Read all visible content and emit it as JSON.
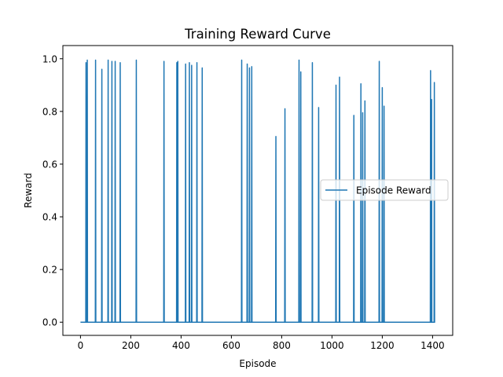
{
  "chart_data": {
    "type": "line",
    "title": "Training Reward Curve",
    "xlabel": "Episode",
    "ylabel": "Reward",
    "xlim": [
      -70,
      1480
    ],
    "ylim": [
      -0.05,
      1.05
    ],
    "x_ticks": [
      0,
      200,
      400,
      600,
      800,
      1000,
      1200,
      1400
    ],
    "y_ticks": [
      0.0,
      0.2,
      0.4,
      0.6,
      0.8,
      1.0
    ],
    "x_tick_labels": [
      "0",
      "200",
      "400",
      "600",
      "800",
      "1000",
      "1200",
      "1400"
    ],
    "y_tick_labels": [
      "0.0",
      "0.2",
      "0.4",
      "0.6",
      "0.8",
      "1.0"
    ],
    "grid": false,
    "legend_position": "center-right",
    "series": [
      {
        "name": "Episode Reward",
        "color": "#1f77b4",
        "episode_count": 1410,
        "baseline_value": 0.0,
        "spikes": [
          {
            "episode": 22,
            "value": 0.985
          },
          {
            "episode": 27,
            "value": 0.995
          },
          {
            "episode": 60,
            "value": 0.995
          },
          {
            "episode": 85,
            "value": 0.96
          },
          {
            "episode": 110,
            "value": 0.995
          },
          {
            "episode": 125,
            "value": 0.99
          },
          {
            "episode": 138,
            "value": 0.99
          },
          {
            "episode": 158,
            "value": 0.985
          },
          {
            "episode": 222,
            "value": 0.995
          },
          {
            "episode": 332,
            "value": 0.99
          },
          {
            "episode": 383,
            "value": 0.985
          },
          {
            "episode": 387,
            "value": 0.99
          },
          {
            "episode": 418,
            "value": 0.98
          },
          {
            "episode": 433,
            "value": 0.985
          },
          {
            "episode": 442,
            "value": 0.975
          },
          {
            "episode": 463,
            "value": 0.985
          },
          {
            "episode": 484,
            "value": 0.965
          },
          {
            "episode": 641,
            "value": 0.995
          },
          {
            "episode": 663,
            "value": 0.98
          },
          {
            "episode": 672,
            "value": 0.965
          },
          {
            "episode": 681,
            "value": 0.97
          },
          {
            "episode": 777,
            "value": 0.705
          },
          {
            "episode": 813,
            "value": 0.81
          },
          {
            "episode": 869,
            "value": 0.995
          },
          {
            "episode": 876,
            "value": 0.95
          },
          {
            "episode": 922,
            "value": 0.985
          },
          {
            "episode": 947,
            "value": 0.815
          },
          {
            "episode": 1016,
            "value": 0.9
          },
          {
            "episode": 1030,
            "value": 0.93
          },
          {
            "episode": 1087,
            "value": 0.785
          },
          {
            "episode": 1115,
            "value": 0.905
          },
          {
            "episode": 1122,
            "value": 0.795
          },
          {
            "episode": 1131,
            "value": 0.84
          },
          {
            "episode": 1188,
            "value": 0.99
          },
          {
            "episode": 1200,
            "value": 0.89
          },
          {
            "episode": 1207,
            "value": 0.82
          },
          {
            "episode": 1392,
            "value": 0.955
          },
          {
            "episode": 1396,
            "value": 0.845
          },
          {
            "episode": 1407,
            "value": 0.91
          }
        ]
      }
    ]
  }
}
